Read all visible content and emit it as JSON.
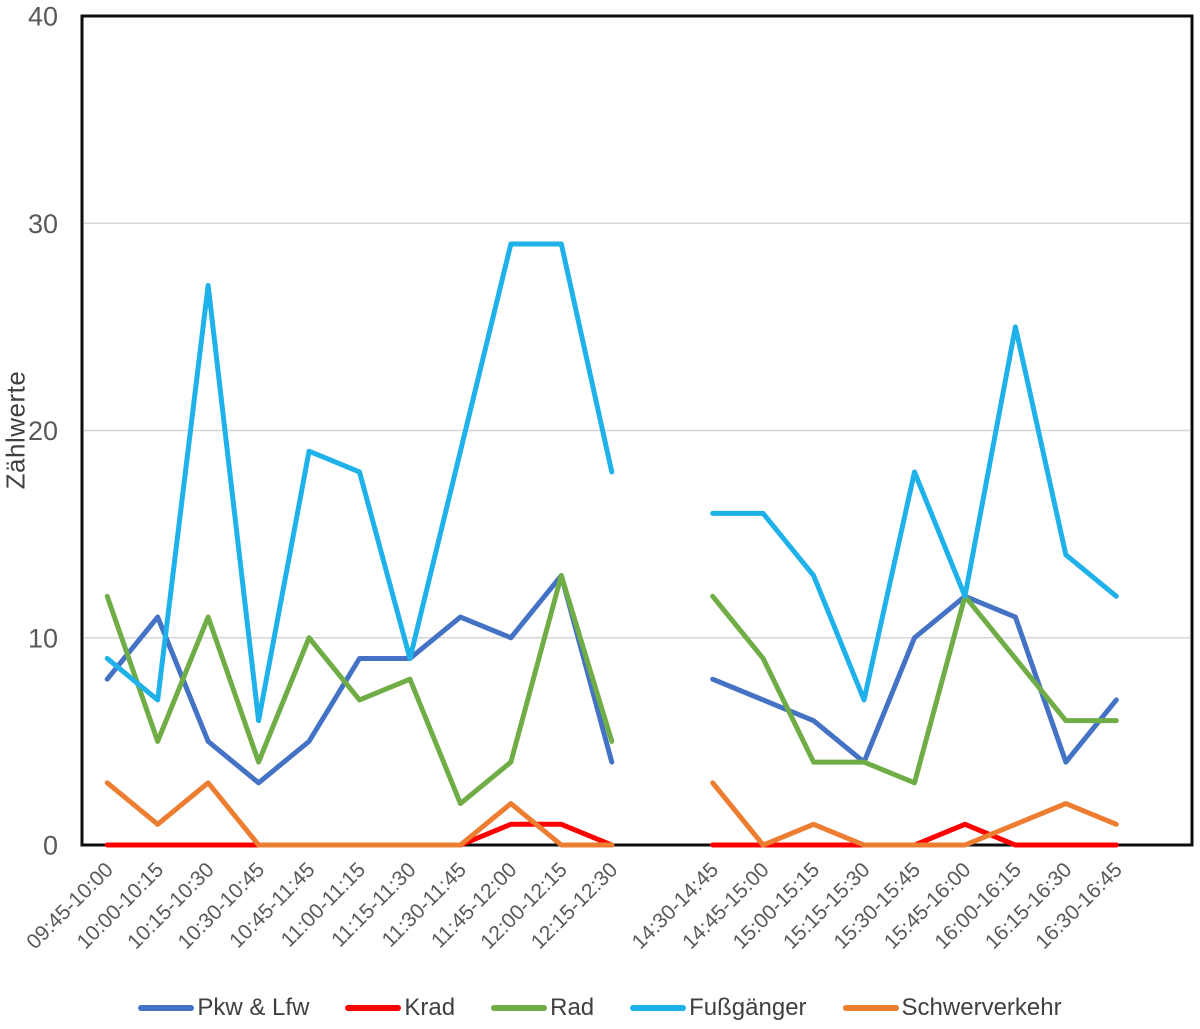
{
  "chart_data": {
    "type": "line",
    "ylabel": "Zählwerte",
    "xlabel": "",
    "ylim": [
      0,
      40
    ],
    "yticks": [
      0,
      10,
      20,
      30,
      40
    ],
    "grid": "horizontal",
    "legend_position": "bottom",
    "categories": [
      "09:45-10:00",
      "10:00-10:15",
      "10:15-10:30",
      "10:30-10:45",
      "10:45-11:45",
      "11:00-11:15",
      "11:15-11:30",
      "11:30-11:45",
      "11:45-12:00",
      "12:00-12:15",
      "12:15-12:30",
      "",
      "14:30-14:45",
      "14:45-15:00",
      "15:00-15:15",
      "15:15-15:30",
      "15:30-15:45",
      "15:45-16:00",
      "16:00-16:15",
      "16:15-16:30",
      "16:30-16:45",
      ""
    ],
    "series": [
      {
        "name": "Pkw & Lfw",
        "color": "#4472C4",
        "values": [
          8,
          11,
          5,
          3,
          5,
          9,
          9,
          11,
          10,
          13,
          4,
          null,
          8,
          7,
          6,
          4,
          10,
          12,
          11,
          4,
          7,
          null
        ]
      },
      {
        "name": "Krad",
        "color": "#FF0000",
        "values": [
          0,
          0,
          0,
          0,
          0,
          0,
          0,
          0,
          1,
          1,
          0,
          null,
          0,
          0,
          0,
          0,
          0,
          1,
          0,
          0,
          0,
          null
        ]
      },
      {
        "name": "Rad",
        "color": "#70AD47",
        "values": [
          12,
          5,
          11,
          4,
          10,
          7,
          8,
          2,
          4,
          13,
          5,
          null,
          12,
          9,
          4,
          4,
          3,
          12,
          9,
          6,
          6,
          null
        ]
      },
      {
        "name": "Fußgänger",
        "color": "#1FB1EA",
        "values": [
          9,
          7,
          27,
          6,
          19,
          18,
          9,
          19,
          29,
          29,
          18,
          null,
          16,
          16,
          13,
          7,
          18,
          12,
          25,
          14,
          12,
          null
        ]
      },
      {
        "name": "Schwerverkehr",
        "color": "#ED7D31",
        "values": [
          3,
          1,
          3,
          0,
          0,
          0,
          0,
          0,
          2,
          0,
          0,
          null,
          3,
          0,
          1,
          0,
          0,
          0,
          1,
          2,
          1,
          null
        ]
      }
    ],
    "style": {
      "gridline_color": "#D6D6D6",
      "border_color": "#0D0D0D",
      "tick_label_color": "#595959",
      "line_width": 5
    }
  }
}
